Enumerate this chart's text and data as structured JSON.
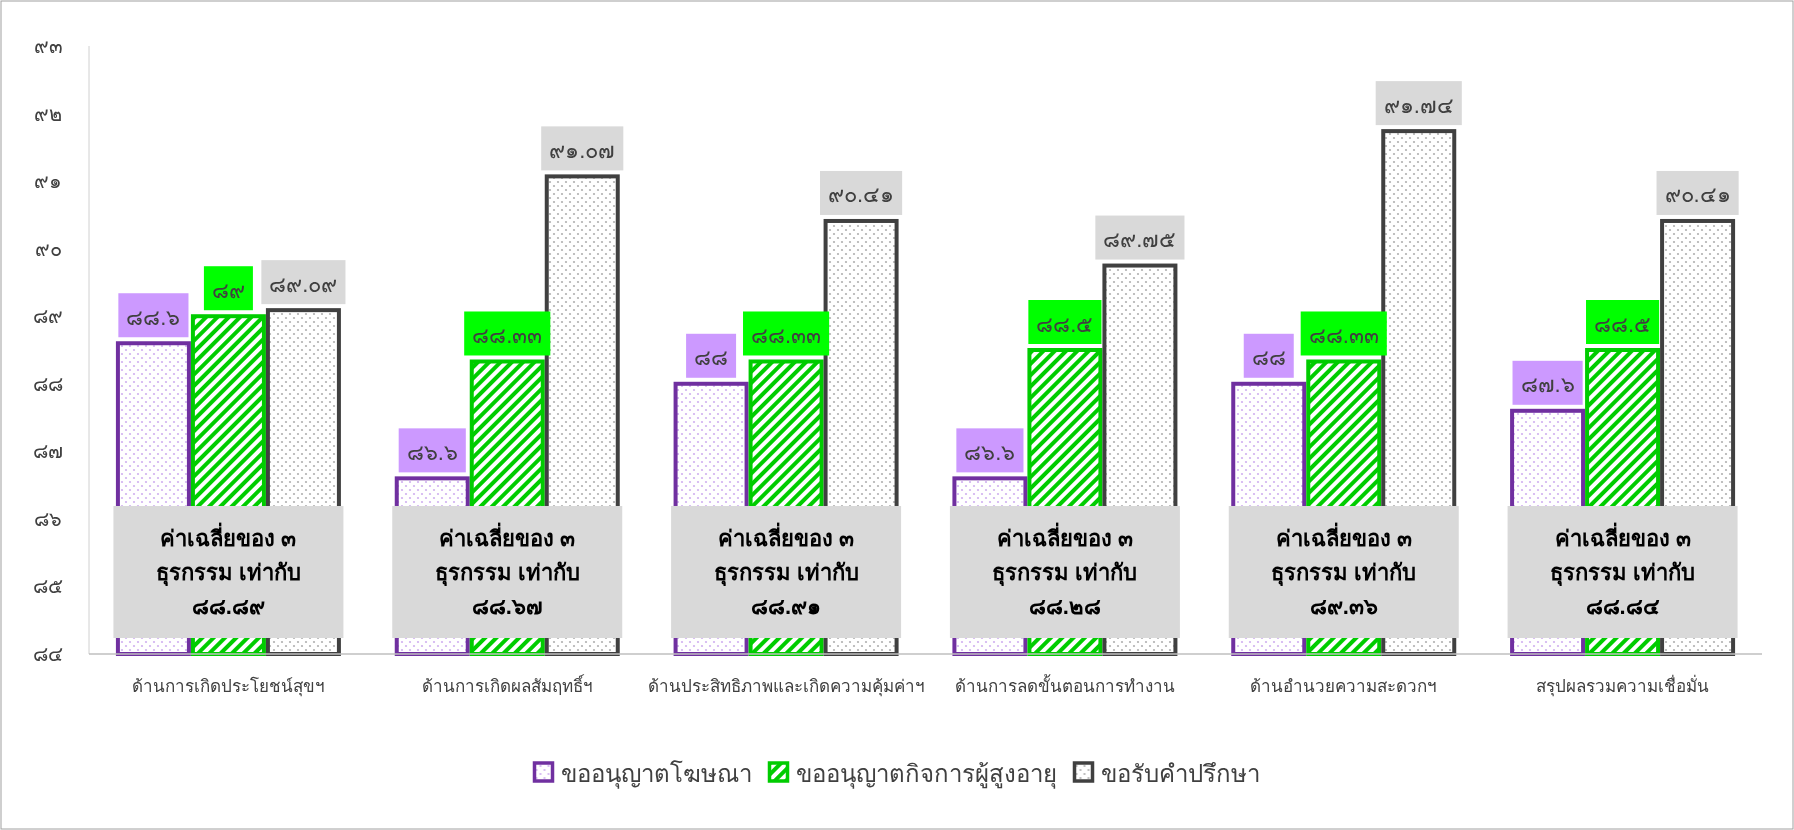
{
  "chart_data": {
    "type": "bar",
    "categories": [
      "ด้านการเกิดประโยชน์สุขฯ",
      "ด้านการเกิดผลสัมฤทธิ์ฯ",
      "ด้านประสิทธิภาพและเกิดความคุ้มค่าฯ",
      "ด้านการลดขั้นตอนการทำงาน",
      "ด้านอำนวยความสะดวกฯ",
      "สรุปผลรวมความเชื่อมั่น"
    ],
    "series": [
      {
        "name": "ขออนุญาตโฆษณา",
        "color": "#7030a0",
        "values": [
          88.6,
          86.6,
          88,
          86.6,
          88,
          87.6
        ],
        "value_labels": [
          "๘๘.๖",
          "๘๖.๖",
          "๘๘",
          "๘๖.๖",
          "๘๘",
          "๘๗.๖"
        ]
      },
      {
        "name": "ขออนุญาตกิจการผู้สูงอายุ",
        "color": "#00cc00",
        "values": [
          89,
          88.33,
          88.33,
          88.5,
          88.33,
          88.5
        ],
        "value_labels": [
          "๘๙",
          "๘๘.๓๓",
          "๘๘.๓๓",
          "๘๘.๕",
          "๘๘.๓๓",
          "๘๘.๕"
        ]
      },
      {
        "name": "ขอรับคำปรึกษา",
        "color": "#404040",
        "values": [
          89.09,
          91.07,
          90.41,
          89.75,
          91.74,
          90.41
        ],
        "value_labels": [
          "๘๙.๐๙",
          "๙๑.๐๗",
          "๙๐.๔๑",
          "๘๙.๗๕",
          "๙๑.๗๔",
          "๙๐.๔๑"
        ]
      }
    ],
    "ylim": [
      84,
      93
    ],
    "yticks": [
      {
        "value": 84,
        "label": "๘๔"
      },
      {
        "value": 85,
        "label": "๘๕"
      },
      {
        "value": 86,
        "label": "๘๖"
      },
      {
        "value": 87,
        "label": "๘๗"
      },
      {
        "value": 88,
        "label": "๘๘"
      },
      {
        "value": 89,
        "label": "๘๙"
      },
      {
        "value": 90,
        "label": "๙๐"
      },
      {
        "value": 91,
        "label": "๙๑"
      },
      {
        "value": 92,
        "label": "๙๒"
      },
      {
        "value": 93,
        "label": "๙๓"
      }
    ],
    "grid": false,
    "legend": "bottom",
    "annotations": [
      "ค่าเฉลี่ยของ ๓\nธุรกรรม เท่ากับ\n๘๘.๘๙",
      "ค่าเฉลี่ยของ ๓\nธุรกรรม เท่ากับ\n๘๘.๖๗",
      "ค่าเฉลี่ยของ ๓\nธุรกรรม เท่ากับ\n๘๘.๙๑",
      "ค่าเฉลี่ยของ ๓\nธุรกรรม เท่ากับ\n๘๘.๒๘",
      "ค่าเฉลี่ยของ ๓\nธุรกรรม เท่ากับ\n๘๙.๓๖",
      "ค่าเฉลี่ยของ ๓\nธุรกรรม เท่ากับ\n๘๘.๘๔"
    ]
  }
}
